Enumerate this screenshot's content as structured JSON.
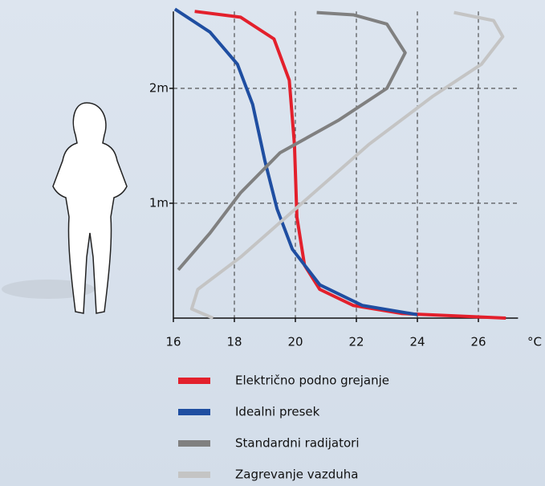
{
  "chart_data": {
    "type": "line",
    "x_unit": "°C",
    "xlim": [
      16,
      27.3
    ],
    "ylim": [
      0,
      2.67
    ],
    "xticks": [
      16,
      18,
      20,
      22,
      24,
      26
    ],
    "yticks": [
      {
        "value": 1,
        "label": "1m"
      },
      {
        "value": 2,
        "label": "2m"
      }
    ],
    "grid": true,
    "series": [
      {
        "name": "Električno podno grejanje",
        "color": "#e3202c",
        "x": [
          16.7,
          18.2,
          19.3,
          19.8,
          19.97,
          20.05,
          20.3,
          20.8,
          21.9,
          23.5,
          26.9
        ],
        "y": [
          2.67,
          2.62,
          2.43,
          2.07,
          1.51,
          0.88,
          0.46,
          0.25,
          0.11,
          0.04,
          0.0
        ]
      },
      {
        "name": "Idealni presek",
        "color": "#1f4ea1",
        "x": [
          16.05,
          17.2,
          18.1,
          18.6,
          19.0,
          19.4,
          19.9,
          20.8,
          22.2,
          24.0
        ],
        "y": [
          2.69,
          2.49,
          2.21,
          1.86,
          1.37,
          0.95,
          0.6,
          0.29,
          0.11,
          0.03
        ]
      },
      {
        "name": "Standardni radijatori",
        "color": "#808080",
        "x": [
          16.16,
          17.2,
          18.2,
          19.5,
          21.4,
          23.0,
          23.6,
          23.0,
          21.9,
          20.7
        ],
        "y": [
          0.42,
          0.74,
          1.09,
          1.44,
          1.72,
          2.0,
          2.31,
          2.56,
          2.64,
          2.66
        ]
      },
      {
        "name": "Zagrevanje vazduha",
        "color": "#c4c4c4",
        "x": [
          17.3,
          16.6,
          16.8,
          18.2,
          20.3,
          22.4,
          24.5,
          26.1,
          26.8,
          26.5,
          25.2
        ],
        "y": [
          0,
          0.08,
          0.25,
          0.53,
          1.02,
          1.51,
          1.93,
          2.21,
          2.45,
          2.59,
          2.66
        ]
      }
    ]
  }
}
